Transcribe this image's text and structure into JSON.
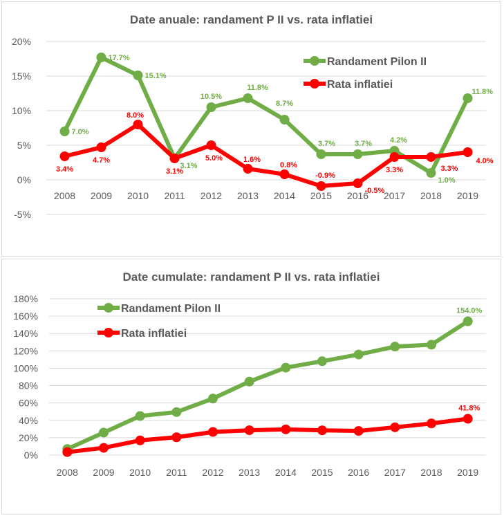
{
  "colors": {
    "green": "#70ad47",
    "red": "#ff0000",
    "grid": "#d9d9d9",
    "text": "#595959"
  },
  "chart_data": [
    {
      "type": "line",
      "title": "Date anuale: randament P II vs. rata inflatiei",
      "categories": [
        "2008",
        "2009",
        "2010",
        "2011",
        "2012",
        "2013",
        "2014",
        "2015",
        "2016",
        "2017",
        "2018",
        "2019"
      ],
      "ylim": [
        -5,
        20
      ],
      "yticks": [
        20,
        15,
        10,
        5,
        0,
        -5
      ],
      "ytick_labels": [
        "20%",
        "15%",
        "10%",
        "5%",
        "0%",
        "-5%"
      ],
      "grid": true,
      "legend_position": "top-right",
      "series": [
        {
          "name": "Randament Pilon II",
          "color": "#70ad47",
          "values": [
            7.0,
            17.7,
            15.1,
            3.1,
            10.5,
            11.8,
            8.7,
            3.7,
            3.7,
            4.2,
            1.0,
            11.8
          ],
          "labels": [
            "7.0%",
            "17.7%",
            "15.1%",
            "3.1%",
            "10.5%",
            "11.8%",
            "8.7%",
            "3.7%",
            "3.7%",
            "4.2%",
            "1.0%",
            "11.8%"
          ]
        },
        {
          "name": "Rata inflatiei",
          "color": "#ff0000",
          "values": [
            3.4,
            4.7,
            8.0,
            3.1,
            5.0,
            1.6,
            0.8,
            -0.9,
            -0.5,
            3.3,
            3.3,
            4.0
          ],
          "labels": [
            "3.4%",
            "4.7%",
            "8.0%",
            "3.1%",
            "5.0%",
            "1.6%",
            "0.8%",
            "-0.9%",
            "-0.5%",
            "3.3%",
            "3.3%",
            "4.0%"
          ]
        }
      ]
    },
    {
      "type": "line",
      "title": "Date cumulate: randament P II vs. rata inflatiei",
      "categories": [
        "2008",
        "2009",
        "2010",
        "2011",
        "2012",
        "2013",
        "2014",
        "2015",
        "2016",
        "2017",
        "2018",
        "2019"
      ],
      "ylim": [
        0,
        180
      ],
      "yticks": [
        180,
        160,
        140,
        120,
        100,
        80,
        60,
        40,
        20,
        0
      ],
      "ytick_labels": [
        "180%",
        "160%",
        "140%",
        "120%",
        "100%",
        "80%",
        "60%",
        "40%",
        "20%",
        "0%"
      ],
      "grid": true,
      "legend_position": "top-left",
      "series": [
        {
          "name": "Randament Pilon II",
          "color": "#70ad47",
          "values": [
            7.0,
            25.9,
            45.0,
            49.5,
            65.1,
            84.6,
            100.7,
            108.1,
            115.8,
            124.9,
            127.1,
            154.0
          ],
          "last_label": "154.0%"
        },
        {
          "name": "Rata inflatiei",
          "color": "#ff0000",
          "values": [
            3.4,
            8.3,
            16.9,
            20.5,
            26.6,
            28.6,
            29.6,
            28.5,
            27.8,
            32.0,
            36.4,
            41.8
          ],
          "last_label": "41.8%"
        }
      ]
    }
  ]
}
